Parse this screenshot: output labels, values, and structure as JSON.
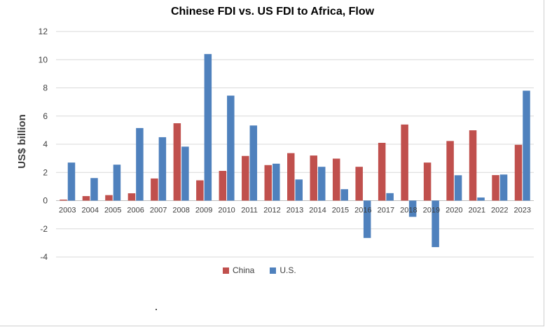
{
  "chart_data": {
    "type": "bar",
    "title": "Chinese FDI vs. US FDI to Africa, Flow",
    "ylabel": "US$ billion",
    "xlabel": "",
    "ylim": [
      -4,
      12
    ],
    "yticks": [
      -4,
      -2,
      0,
      2,
      4,
      6,
      8,
      10,
      12
    ],
    "grid": true,
    "legend_position": "bottom",
    "categories": [
      "2003",
      "2004",
      "2005",
      "2006",
      "2007",
      "2008",
      "2009",
      "2010",
      "2011",
      "2012",
      "2013",
      "2014",
      "2015",
      "2016",
      "2017",
      "2018",
      "2019",
      "2020",
      "2021",
      "2022",
      "2023"
    ],
    "series": [
      {
        "name": "China",
        "color": "#c0504d",
        "values": [
          0.07,
          0.32,
          0.39,
          0.52,
          1.57,
          5.49,
          1.44,
          2.11,
          3.17,
          2.52,
          3.37,
          3.2,
          2.98,
          2.4,
          4.1,
          5.4,
          2.7,
          4.23,
          4.99,
          1.81,
          3.96
        ]
      },
      {
        "name": "U.S.",
        "color": "#4f81bd",
        "values": [
          2.7,
          1.6,
          2.55,
          5.15,
          4.5,
          3.83,
          10.4,
          7.45,
          5.33,
          2.62,
          1.5,
          2.4,
          0.81,
          -2.65,
          0.53,
          -1.15,
          -3.3,
          1.8,
          0.22,
          1.85,
          7.8
        ]
      }
    ]
  }
}
